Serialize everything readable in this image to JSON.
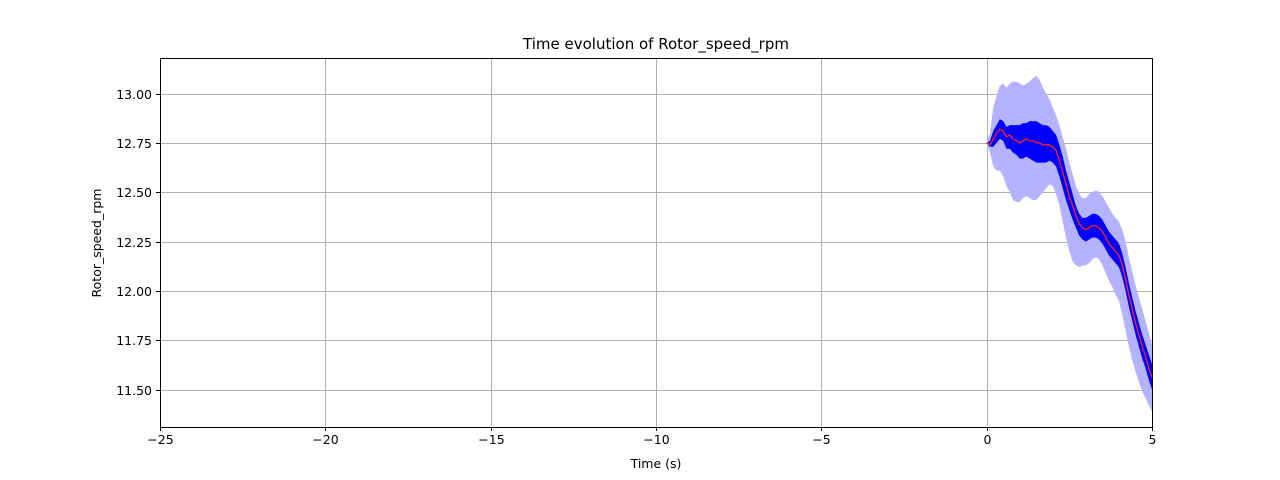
{
  "chart_data": {
    "type": "line",
    "title": "Time evolution of Rotor_speed_rpm",
    "xlabel": "Time (s)",
    "ylabel": "Rotor_speed_rpm",
    "xlim": [
      -25,
      5
    ],
    "ylim": [
      11.31,
      13.18
    ],
    "grid": true,
    "xticks": [
      -25,
      -20,
      -15,
      -10,
      -5,
      0,
      5
    ],
    "xtick_labels": [
      "−25",
      "−20",
      "−15",
      "−10",
      "−5",
      "0",
      "5"
    ],
    "yticks": [
      11.5,
      11.75,
      12.0,
      12.25,
      12.5,
      12.75,
      13.0
    ],
    "ytick_labels": [
      "11.50",
      "11.75",
      "12.00",
      "12.25",
      "12.50",
      "12.75",
      "13.00"
    ],
    "colors": {
      "mean_line": "#ff2020",
      "inner_band": "#0000ff",
      "outer_band": "#b3b3ff",
      "grid": "#b0b0b0"
    },
    "series": [
      {
        "name": "mean",
        "x": [
          0,
          0.1,
          0.2,
          0.3,
          0.4,
          0.5,
          0.6,
          0.7,
          0.8,
          0.9,
          1.0,
          1.1,
          1.2,
          1.3,
          1.4,
          1.5,
          1.6,
          1.7,
          1.8,
          1.9,
          2.0,
          2.1,
          2.2,
          2.3,
          2.4,
          2.5,
          2.6,
          2.7,
          2.8,
          2.9,
          3.0,
          3.1,
          3.2,
          3.3,
          3.4,
          3.5,
          3.6,
          3.7,
          3.8,
          3.9,
          4.0,
          4.1,
          4.2,
          4.3,
          4.4,
          4.5,
          4.6,
          4.7,
          4.8,
          4.9,
          5.0
        ],
        "values": [
          12.75,
          12.74,
          12.77,
          12.8,
          12.82,
          12.81,
          12.78,
          12.79,
          12.77,
          12.76,
          12.75,
          12.76,
          12.77,
          12.76,
          12.76,
          12.75,
          12.75,
          12.74,
          12.74,
          12.74,
          12.73,
          12.71,
          12.66,
          12.6,
          12.54,
          12.48,
          12.43,
          12.38,
          12.34,
          12.32,
          12.31,
          12.32,
          12.33,
          12.33,
          12.32,
          12.3,
          12.27,
          12.24,
          12.22,
          12.2,
          12.18,
          12.13,
          12.06,
          11.98,
          11.91,
          11.84,
          11.78,
          11.72,
          11.67,
          11.61,
          11.56
        ]
      },
      {
        "name": "inner_band_upper",
        "x": [
          0,
          0.1,
          0.2,
          0.3,
          0.4,
          0.5,
          0.6,
          0.7,
          0.8,
          0.9,
          1.0,
          1.1,
          1.2,
          1.3,
          1.4,
          1.5,
          1.6,
          1.7,
          1.8,
          1.9,
          2.0,
          2.1,
          2.2,
          2.3,
          2.4,
          2.5,
          2.6,
          2.7,
          2.8,
          2.9,
          3.0,
          3.1,
          3.2,
          3.3,
          3.4,
          3.5,
          3.6,
          3.7,
          3.8,
          3.9,
          4.0,
          4.1,
          4.2,
          4.3,
          4.4,
          4.5,
          4.6,
          4.7,
          4.8,
          4.9,
          5.0
        ],
        "values": [
          12.75,
          12.76,
          12.81,
          12.84,
          12.87,
          12.86,
          12.83,
          12.84,
          12.84,
          12.84,
          12.84,
          12.85,
          12.85,
          12.86,
          12.86,
          12.86,
          12.85,
          12.84,
          12.84,
          12.83,
          12.81,
          12.79,
          12.74,
          12.68,
          12.61,
          12.55,
          12.49,
          12.43,
          12.39,
          12.37,
          12.37,
          12.38,
          12.39,
          12.39,
          12.38,
          12.36,
          12.33,
          12.3,
          12.28,
          12.26,
          12.24,
          12.19,
          12.12,
          12.04,
          11.97,
          11.9,
          11.84,
          11.78,
          11.73,
          11.68,
          11.63
        ]
      },
      {
        "name": "inner_band_lower",
        "x": [
          0,
          0.1,
          0.2,
          0.3,
          0.4,
          0.5,
          0.6,
          0.7,
          0.8,
          0.9,
          1.0,
          1.1,
          1.2,
          1.3,
          1.4,
          1.5,
          1.6,
          1.7,
          1.8,
          1.9,
          2.0,
          2.1,
          2.2,
          2.3,
          2.4,
          2.5,
          2.6,
          2.7,
          2.8,
          2.9,
          3.0,
          3.1,
          3.2,
          3.3,
          3.4,
          3.5,
          3.6,
          3.7,
          3.8,
          3.9,
          4.0,
          4.1,
          4.2,
          4.3,
          4.4,
          4.5,
          4.6,
          4.7,
          4.8,
          4.9,
          5.0
        ],
        "values": [
          12.75,
          12.73,
          12.73,
          12.75,
          12.77,
          12.76,
          12.72,
          12.72,
          12.7,
          12.69,
          12.67,
          12.67,
          12.68,
          12.67,
          12.66,
          12.65,
          12.65,
          12.65,
          12.65,
          12.66,
          12.65,
          12.63,
          12.58,
          12.52,
          12.46,
          12.41,
          12.36,
          12.32,
          12.28,
          12.26,
          12.25,
          12.26,
          12.27,
          12.27,
          12.26,
          12.24,
          12.21,
          12.18,
          12.16,
          12.14,
          12.12,
          12.07,
          12.0,
          11.92,
          11.85,
          11.78,
          11.72,
          11.66,
          11.61,
          11.55,
          11.5
        ]
      },
      {
        "name": "outer_band_upper",
        "x": [
          0,
          0.1,
          0.2,
          0.3,
          0.4,
          0.5,
          0.6,
          0.7,
          0.8,
          0.9,
          1.0,
          1.1,
          1.2,
          1.3,
          1.4,
          1.5,
          1.6,
          1.7,
          1.8,
          1.9,
          2.0,
          2.1,
          2.2,
          2.3,
          2.4,
          2.5,
          2.6,
          2.7,
          2.8,
          2.9,
          3.0,
          3.1,
          3.2,
          3.3,
          3.4,
          3.5,
          3.6,
          3.7,
          3.8,
          3.9,
          4.0,
          4.1,
          4.2,
          4.3,
          4.4,
          4.5,
          4.6,
          4.7,
          4.8,
          4.9,
          5.0
        ],
        "values": [
          12.75,
          12.8,
          12.93,
          12.99,
          13.04,
          13.05,
          13.03,
          13.05,
          13.06,
          13.06,
          13.05,
          13.04,
          13.05,
          13.06,
          13.08,
          13.09,
          13.07,
          13.03,
          13.0,
          12.97,
          12.93,
          12.89,
          12.84,
          12.78,
          12.72,
          12.65,
          12.59,
          12.53,
          12.49,
          12.47,
          12.47,
          12.49,
          12.5,
          12.51,
          12.5,
          12.48,
          12.45,
          12.42,
          12.39,
          12.37,
          12.35,
          12.31,
          12.25,
          12.17,
          12.1,
          12.03,
          11.97,
          11.91,
          11.85,
          11.79,
          11.73
        ]
      },
      {
        "name": "outer_band_lower",
        "x": [
          0,
          0.1,
          0.2,
          0.3,
          0.4,
          0.5,
          0.6,
          0.7,
          0.8,
          0.9,
          1.0,
          1.1,
          1.2,
          1.3,
          1.4,
          1.5,
          1.6,
          1.7,
          1.8,
          1.9,
          2.0,
          2.1,
          2.2,
          2.3,
          2.4,
          2.5,
          2.6,
          2.7,
          2.8,
          2.9,
          3.0,
          3.1,
          3.2,
          3.3,
          3.4,
          3.5,
          3.6,
          3.7,
          3.8,
          3.9,
          4.0,
          4.1,
          4.2,
          4.3,
          4.4,
          4.5,
          4.6,
          4.7,
          4.8,
          4.9,
          5.0
        ],
        "values": [
          12.75,
          12.7,
          12.63,
          12.61,
          12.61,
          12.58,
          12.53,
          12.5,
          12.46,
          12.45,
          12.45,
          12.47,
          12.48,
          12.47,
          12.46,
          12.46,
          12.48,
          12.5,
          12.52,
          12.54,
          12.53,
          12.49,
          12.43,
          12.35,
          12.27,
          12.2,
          12.15,
          12.13,
          12.12,
          12.13,
          12.13,
          12.14,
          12.16,
          12.17,
          12.16,
          12.13,
          12.09,
          12.05,
          12.02,
          11.98,
          11.95,
          11.88,
          11.8,
          11.72,
          11.65,
          11.59,
          11.54,
          11.49,
          11.46,
          11.42,
          11.39
        ]
      }
    ]
  }
}
